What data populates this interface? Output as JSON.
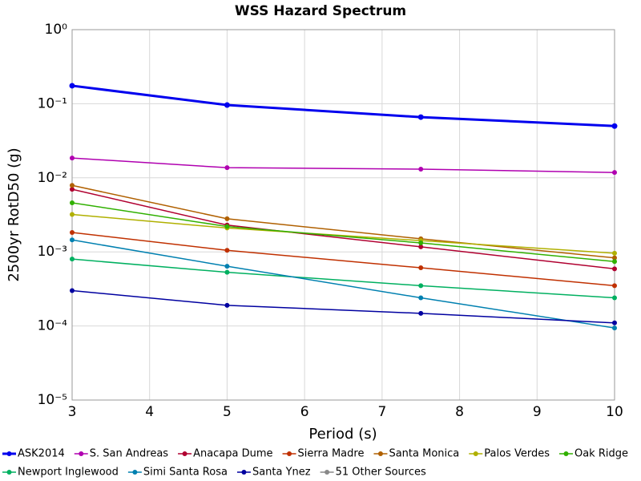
{
  "chart_data": {
    "type": "line",
    "title": "WSS Hazard Spectrum",
    "x_label": "Period (s)",
    "y_label": "2500yr RotD50 (g)",
    "x": [
      3,
      5,
      7.5,
      10
    ],
    "xlim": [
      3,
      10
    ],
    "xticks": [
      3,
      4,
      5,
      6,
      7,
      8,
      9,
      10
    ],
    "ylim": [
      1e-05,
      1
    ],
    "yticks": [
      {
        "value": 1e-05,
        "label": "10⁻⁵"
      },
      {
        "value": 0.0001,
        "label": "10⁻⁴"
      },
      {
        "value": 0.001,
        "label": "10⁻³"
      },
      {
        "value": 0.01,
        "label": "10⁻²"
      },
      {
        "value": 0.1,
        "label": "10⁻¹"
      },
      {
        "value": 1,
        "label": "10⁰"
      }
    ],
    "log_y": true,
    "grid": true,
    "legend": "bottom",
    "series": [
      {
        "name": "ASK2014",
        "color": "#0000ee",
        "line_width": 3,
        "values": [
          0.175,
          0.096,
          0.066,
          0.05
        ]
      },
      {
        "name": "S. San Andreas",
        "color": "#b000b0",
        "line_width": 1.5,
        "values": [
          0.0185,
          0.0137,
          0.0131,
          0.0118
        ]
      },
      {
        "name": "Anacapa Dume",
        "color": "#b00030",
        "line_width": 1.5,
        "values": [
          0.007,
          0.0023,
          0.00117,
          0.00059
        ]
      },
      {
        "name": "Sierra Madre",
        "color": "#c03000",
        "line_width": 1.5,
        "values": [
          0.00183,
          0.00105,
          0.00061,
          0.00035
        ]
      },
      {
        "name": "Santa Monica",
        "color": "#b06000",
        "line_width": 1.5,
        "values": [
          0.0079,
          0.0028,
          0.0015,
          0.00083
        ]
      },
      {
        "name": "Palos Verdes",
        "color": "#b0b000",
        "line_width": 1.5,
        "values": [
          0.0032,
          0.0021,
          0.00142,
          0.00096
        ]
      },
      {
        "name": "Oak Ridge",
        "color": "#30b000",
        "line_width": 1.5,
        "values": [
          0.0046,
          0.0022,
          0.00132,
          0.00074
        ]
      },
      {
        "name": "Newport Inglewood",
        "color": "#00b060",
        "line_width": 1.5,
        "values": [
          0.0008,
          0.00053,
          0.00035,
          0.00024
        ]
      },
      {
        "name": "Simi Santa Rosa",
        "color": "#0080b0",
        "line_width": 1.5,
        "values": [
          0.00145,
          0.00064,
          0.00024,
          9.4e-05
        ]
      },
      {
        "name": "Santa Ynez",
        "color": "#0000a0",
        "line_width": 1.5,
        "values": [
          0.0003,
          0.00019,
          0.000148,
          0.00011
        ]
      },
      {
        "name": "51 Other Sources",
        "color": "#888888",
        "line_width": 1.5,
        "values": [
          null,
          null,
          null,
          null
        ]
      }
    ]
  }
}
